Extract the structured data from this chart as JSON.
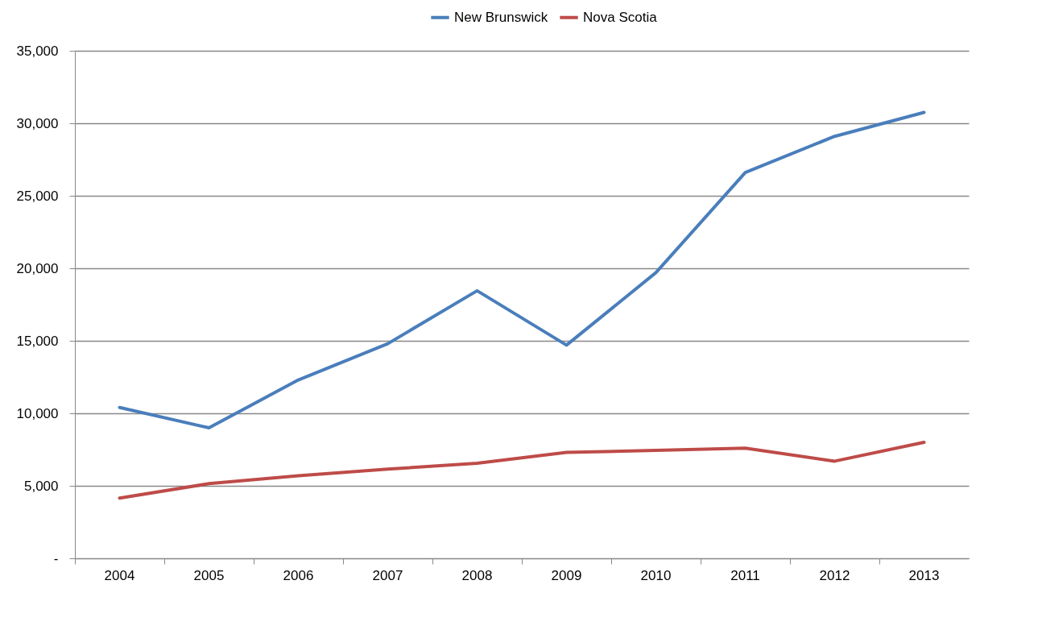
{
  "chart_data": {
    "type": "line",
    "categories": [
      "2004",
      "2005",
      "2006",
      "2007",
      "2008",
      "2009",
      "2010",
      "2011",
      "2012",
      "2013"
    ],
    "series": [
      {
        "name": "New Brunswick",
        "color": "#4a7ebb",
        "values": [
          10400,
          9000,
          12300,
          14800,
          18450,
          14700,
          19700,
          26600,
          29100,
          30750
        ]
      },
      {
        "name": "Nova Scotia",
        "color": "#be4b48",
        "values": [
          4150,
          5150,
          5700,
          6150,
          6550,
          7300,
          7450,
          7600,
          6700,
          8000
        ]
      }
    ],
    "ylim": [
      0,
      35000
    ],
    "yticks": [
      {
        "value": 0,
        "label": "-"
      },
      {
        "value": 5000,
        "label": "5,000"
      },
      {
        "value": 10000,
        "label": "10,000"
      },
      {
        "value": 15000,
        "label": "15,000"
      },
      {
        "value": 20000,
        "label": "20,000"
      },
      {
        "value": 25000,
        "label": "25,000"
      },
      {
        "value": 30000,
        "label": "30,000"
      },
      {
        "value": 35000,
        "label": "35,000"
      }
    ],
    "grid": "y",
    "legend": "top",
    "marker": "none",
    "line_style": "solid"
  }
}
